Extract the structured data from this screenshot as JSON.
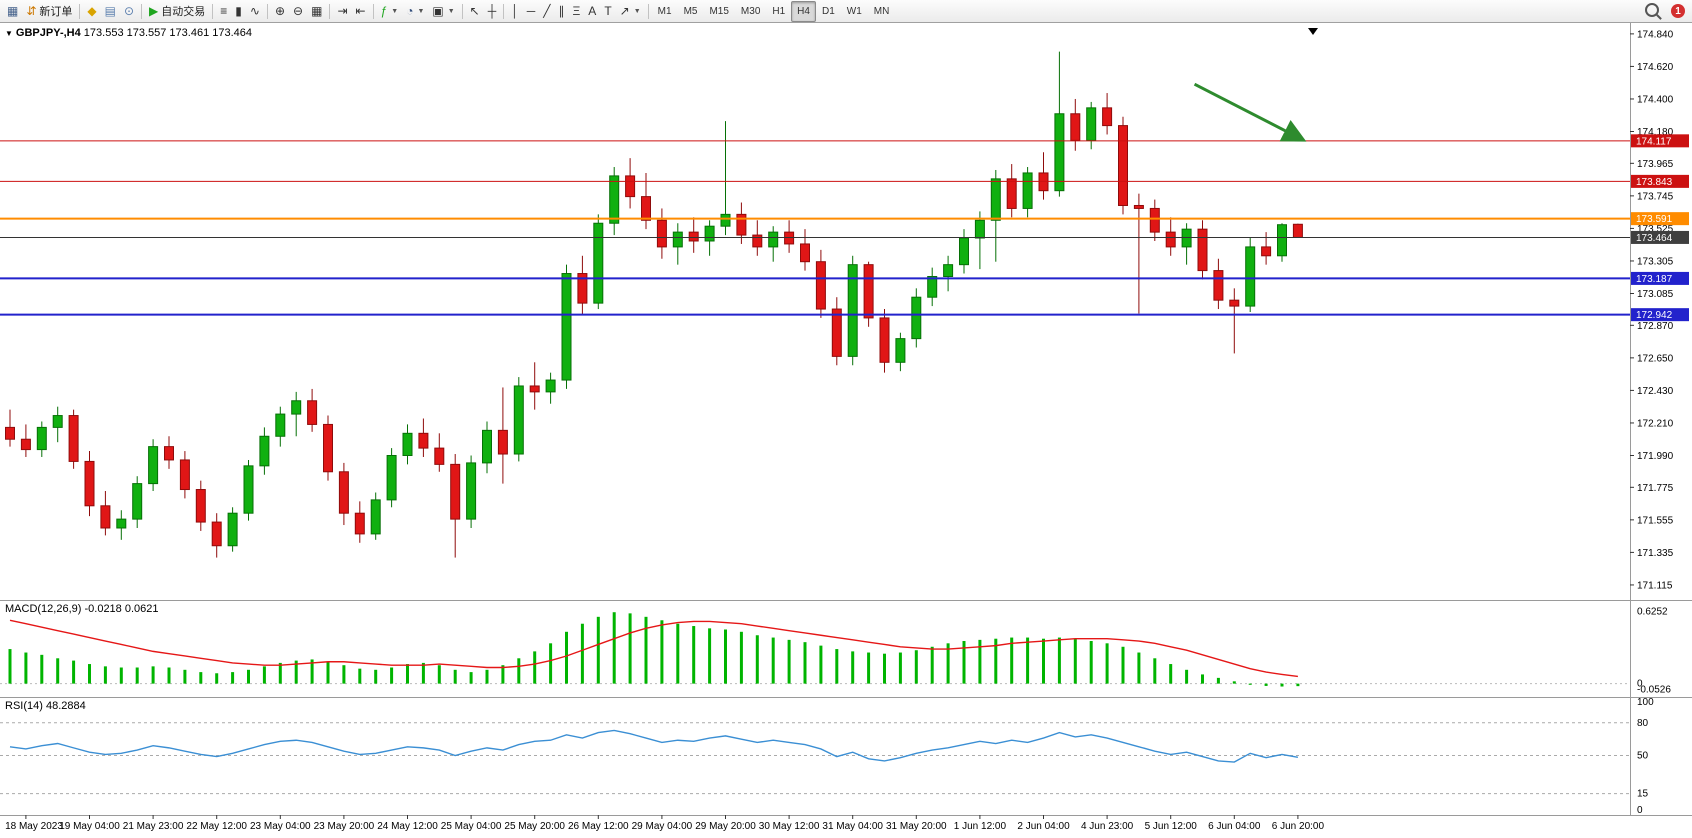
{
  "toolbar": {
    "buttons": [
      {
        "name": "new-chart-window-icon",
        "glyph": "▦",
        "color": "#44618b"
      },
      {
        "name": "new-order-button",
        "glyph": "⇵",
        "color": "#cc7700",
        "label": "新订单"
      },
      {
        "sep": true
      },
      {
        "name": "quick-trade-icon",
        "glyph": "◆",
        "color": "#d9a400"
      },
      {
        "name": "print-icon",
        "glyph": "▤",
        "color": "#5b7fae"
      },
      {
        "name": "history-center-icon",
        "glyph": "⊙",
        "color": "#5b7fae"
      },
      {
        "sep": true
      },
      {
        "name": "autotrading-button",
        "glyph": "▶",
        "color": "#1fa51f",
        "label": "自动交易"
      },
      {
        "sep": true
      },
      {
        "name": "bar-chart-icon",
        "glyph": "≡",
        "color": "#333333"
      },
      {
        "name": "candlestick-chart-icon",
        "glyph": "▮",
        "color": "#333333"
      },
      {
        "name": "line-chart-icon",
        "glyph": "∿",
        "color": "#333333"
      },
      {
        "sep": true
      },
      {
        "name": "zoom-in-icon",
        "glyph": "⊕",
        "color": "#333333"
      },
      {
        "name": "zoom-out-icon",
        "glyph": "⊖",
        "color": "#333333"
      },
      {
        "name": "tile-windows-icon",
        "glyph": "▦",
        "color": "#333333"
      },
      {
        "sep": true
      },
      {
        "name": "auto-scroll-icon",
        "glyph": "⇥",
        "color": "#333333"
      },
      {
        "name": "chart-shift-icon",
        "glyph": "⇤",
        "color": "#333333"
      },
      {
        "sep": true
      },
      {
        "name": "indicators-icon",
        "glyph": "ƒ",
        "color": "#1fa51f",
        "caret": true
      },
      {
        "name": "periods-icon",
        "glyph": "◔",
        "color": "#334f7d",
        "caret": true
      },
      {
        "name": "templates-icon",
        "glyph": "▣",
        "color": "#333333",
        "caret": true
      },
      {
        "sep": true
      },
      {
        "name": "cursor-icon",
        "glyph": "↖",
        "color": "#333333"
      },
      {
        "name": "crosshair-icon",
        "glyph": "┼",
        "color": "#333333"
      },
      {
        "sep": true
      },
      {
        "name": "vertical-line-icon",
        "glyph": "│",
        "color": "#333333"
      },
      {
        "name": "horizontal-line-icon",
        "glyph": "─",
        "color": "#333333"
      },
      {
        "name": "trendline-icon",
        "glyph": "╱",
        "color": "#333333"
      },
      {
        "name": "channel-icon",
        "glyph": "∥",
        "color": "#333333"
      },
      {
        "name": "fibonacci-icon",
        "glyph": "Ξ",
        "color": "#333333"
      },
      {
        "name": "text-icon",
        "glyph": "A",
        "color": "#333333"
      },
      {
        "name": "text-label-icon",
        "glyph": "T",
        "color": "#333333"
      },
      {
        "name": "arrows-icon",
        "glyph": "↗",
        "color": "#333333",
        "caret": true
      }
    ],
    "timeframes": [
      "M1",
      "M5",
      "M15",
      "M30",
      "H1",
      "H4",
      "D1",
      "W1",
      "MN"
    ],
    "active_timeframe": "H4",
    "notification_count": "1"
  },
  "chart_header": {
    "symbol_timeframe": "GBPJPY-,H4",
    "ohlc": "173.553 173.557 173.461 173.464"
  },
  "indicators": {
    "macd": {
      "label": "MACD(12,26,9)",
      "main_value": "-0.0218",
      "signal_value": "0.0621",
      "scale_labels": [
        {
          "label": "0.6252",
          "value": 0.6252
        },
        {
          "label": "0",
          "value": 0
        },
        {
          "label": "-0.0526",
          "value": -0.0526
        }
      ]
    },
    "rsi": {
      "label": "RSI(14)",
      "value": "48.2884",
      "levels": [
        100,
        80,
        50,
        15,
        0
      ]
    }
  },
  "chart_data": {
    "type": "candlestick",
    "symbol": "GBPJPY-",
    "timeframe": "H4",
    "price_range": {
      "min": 171.02,
      "max": 174.9
    },
    "price_axis_ticks": [
      174.84,
      174.62,
      174.4,
      174.18,
      173.965,
      173.745,
      173.525,
      173.305,
      173.085,
      172.87,
      172.65,
      172.43,
      172.21,
      171.99,
      171.775,
      171.555,
      171.335,
      171.115
    ],
    "time_labels": [
      "18 May 2023",
      "19 May 04:00",
      "21 May 23:00",
      "22 May 12:00",
      "23 May 04:00",
      "23 May 20:00",
      "24 May 12:00",
      "25 May 04:00",
      "25 May 20:00",
      "26 May 12:00",
      "29 May 04:00",
      "29 May 20:00",
      "30 May 12:00",
      "31 May 04:00",
      "31 May 20:00",
      "1 Jun 12:00",
      "2 Jun 04:00",
      "4 Jun 23:00",
      "5 Jun 12:00",
      "6 Jun 04:00",
      "6 Jun 20:00"
    ],
    "first_label_bar_index": 1,
    "label_every_bars": 4,
    "candles": [
      [
        172.18,
        172.3,
        172.05,
        172.1
      ],
      [
        172.1,
        172.2,
        171.98,
        172.03
      ],
      [
        172.03,
        172.22,
        171.98,
        172.18
      ],
      [
        172.18,
        172.32,
        172.08,
        172.26
      ],
      [
        172.26,
        172.3,
        171.9,
        171.95
      ],
      [
        171.95,
        172.02,
        171.58,
        171.65
      ],
      [
        171.65,
        171.75,
        171.45,
        171.5
      ],
      [
        171.5,
        171.62,
        171.42,
        171.56
      ],
      [
        171.56,
        171.85,
        171.5,
        171.8
      ],
      [
        171.8,
        172.1,
        171.75,
        172.05
      ],
      [
        172.05,
        172.12,
        171.9,
        171.96
      ],
      [
        171.96,
        172.02,
        171.7,
        171.76
      ],
      [
        171.76,
        171.82,
        171.48,
        171.54
      ],
      [
        171.54,
        171.6,
        171.3,
        171.38
      ],
      [
        171.38,
        171.64,
        171.34,
        171.6
      ],
      [
        171.6,
        171.96,
        171.55,
        171.92
      ],
      [
        171.92,
        172.18,
        171.86,
        172.12
      ],
      [
        172.12,
        172.32,
        172.05,
        172.27
      ],
      [
        172.27,
        172.42,
        172.12,
        172.36
      ],
      [
        172.36,
        172.44,
        172.15,
        172.2
      ],
      [
        172.2,
        172.26,
        171.82,
        171.88
      ],
      [
        171.88,
        171.94,
        171.52,
        171.6
      ],
      [
        171.6,
        171.68,
        171.4,
        171.46
      ],
      [
        171.46,
        171.74,
        171.42,
        171.69
      ],
      [
        171.69,
        172.04,
        171.64,
        171.99
      ],
      [
        171.99,
        172.2,
        171.93,
        172.14
      ],
      [
        172.14,
        172.24,
        171.98,
        172.04
      ],
      [
        172.04,
        172.14,
        171.88,
        171.93
      ],
      [
        171.93,
        172.0,
        171.3,
        171.56
      ],
      [
        171.56,
        171.99,
        171.5,
        171.94
      ],
      [
        171.94,
        172.22,
        171.87,
        172.16
      ],
      [
        172.16,
        172.45,
        171.8,
        172.0
      ],
      [
        172.0,
        172.52,
        171.95,
        172.46
      ],
      [
        172.46,
        172.62,
        172.3,
        172.42
      ],
      [
        172.42,
        172.55,
        172.34,
        172.5
      ],
      [
        172.5,
        173.28,
        172.44,
        173.22
      ],
      [
        173.22,
        173.34,
        172.94,
        173.02
      ],
      [
        173.02,
        173.62,
        172.98,
        173.56
      ],
      [
        173.56,
        173.94,
        173.48,
        173.88
      ],
      [
        173.88,
        174.0,
        173.66,
        173.74
      ],
      [
        173.74,
        173.9,
        173.52,
        173.58
      ],
      [
        173.58,
        173.66,
        173.32,
        173.4
      ],
      [
        173.4,
        173.56,
        173.28,
        173.5
      ],
      [
        173.5,
        173.6,
        173.36,
        173.44
      ],
      [
        173.44,
        173.58,
        173.34,
        173.54
      ],
      [
        173.54,
        174.25,
        173.48,
        173.62
      ],
      [
        173.62,
        173.7,
        173.42,
        173.48
      ],
      [
        173.48,
        173.58,
        173.34,
        173.4
      ],
      [
        173.4,
        173.54,
        173.3,
        173.5
      ],
      [
        173.5,
        173.58,
        173.36,
        173.42
      ],
      [
        173.42,
        173.52,
        173.24,
        173.3
      ],
      [
        173.3,
        173.38,
        172.92,
        172.98
      ],
      [
        172.98,
        173.06,
        172.6,
        172.66
      ],
      [
        172.66,
        173.34,
        172.6,
        173.28
      ],
      [
        173.28,
        173.3,
        172.86,
        172.92
      ],
      [
        172.92,
        172.98,
        172.55,
        172.62
      ],
      [
        172.62,
        172.82,
        172.56,
        172.78
      ],
      [
        172.78,
        173.12,
        172.72,
        173.06
      ],
      [
        173.06,
        173.26,
        173.0,
        173.2
      ],
      [
        173.2,
        173.34,
        173.1,
        173.28
      ],
      [
        173.28,
        173.52,
        173.22,
        173.46
      ],
      [
        173.46,
        173.64,
        173.25,
        173.58
      ],
      [
        173.58,
        173.92,
        173.3,
        173.86
      ],
      [
        173.86,
        173.96,
        173.6,
        173.66
      ],
      [
        173.66,
        173.94,
        173.6,
        173.9
      ],
      [
        173.9,
        174.04,
        173.72,
        173.78
      ],
      [
        173.78,
        174.72,
        173.74,
        174.3
      ],
      [
        174.3,
        174.4,
        174.05,
        174.12
      ],
      [
        174.12,
        174.38,
        174.06,
        174.34
      ],
      [
        174.34,
        174.44,
        174.16,
        174.22
      ],
      [
        174.22,
        174.28,
        173.62,
        173.68
      ],
      [
        173.68,
        173.76,
        172.95,
        173.66
      ],
      [
        173.66,
        173.72,
        173.44,
        173.5
      ],
      [
        173.5,
        173.6,
        173.34,
        173.4
      ],
      [
        173.4,
        173.56,
        173.28,
        173.52
      ],
      [
        173.52,
        173.58,
        173.18,
        173.24
      ],
      [
        173.24,
        173.32,
        172.98,
        173.04
      ],
      [
        173.04,
        173.12,
        172.68,
        173.0
      ],
      [
        173.0,
        173.46,
        172.96,
        173.4
      ],
      [
        173.4,
        173.5,
        173.28,
        173.34
      ],
      [
        173.34,
        173.56,
        173.3,
        173.55
      ],
      [
        173.553,
        173.557,
        173.461,
        173.464
      ]
    ],
    "horizontal_lines": [
      {
        "name": "resistance-line-1",
        "price": 174.117,
        "color": "#cc1111",
        "width": 1
      },
      {
        "name": "resistance-line-2",
        "price": 173.843,
        "color": "#cc1111",
        "width": 1
      },
      {
        "name": "pivot-line",
        "price": 173.591,
        "color": "#ff8c00",
        "width": 2
      },
      {
        "name": "bid-price-line",
        "price": 173.464,
        "color": "#333333",
        "width": 1,
        "badge": "#3f3f3f"
      },
      {
        "name": "support-line-1",
        "price": 173.187,
        "color": "#2222cc",
        "width": 2
      },
      {
        "name": "support-line-2",
        "price": 172.942,
        "color": "#2222cc",
        "width": 2
      }
    ],
    "annotations": {
      "arrow": {
        "from_bar": 74.5,
        "from_price": 174.5,
        "to_bar": 81.2,
        "to_price": 174.13,
        "color": "#2e8b2e"
      }
    },
    "colors": {
      "up": "#10b010",
      "up_stroke": "#067006",
      "down": "#e01616",
      "down_stroke": "#8f0b0b"
    },
    "macd": {
      "range": {
        "min": -0.09,
        "max": 0.7
      },
      "histogram_color": "#00b400",
      "signal_color": "#e51717",
      "histogram": [
        0.3,
        0.27,
        0.25,
        0.22,
        0.2,
        0.17,
        0.15,
        0.14,
        0.14,
        0.15,
        0.14,
        0.12,
        0.1,
        0.09,
        0.1,
        0.12,
        0.15,
        0.18,
        0.2,
        0.21,
        0.19,
        0.16,
        0.13,
        0.12,
        0.14,
        0.17,
        0.18,
        0.16,
        0.12,
        0.1,
        0.12,
        0.16,
        0.22,
        0.28,
        0.35,
        0.45,
        0.52,
        0.58,
        0.62,
        0.61,
        0.58,
        0.55,
        0.52,
        0.5,
        0.48,
        0.47,
        0.45,
        0.42,
        0.4,
        0.38,
        0.36,
        0.33,
        0.3,
        0.28,
        0.27,
        0.26,
        0.27,
        0.29,
        0.32,
        0.35,
        0.37,
        0.38,
        0.39,
        0.4,
        0.4,
        0.39,
        0.4,
        0.39,
        0.37,
        0.35,
        0.32,
        0.27,
        0.22,
        0.17,
        0.12,
        0.08,
        0.05,
        0.02,
        -0.01,
        -0.02,
        -0.025,
        -0.0218
      ],
      "signal": [
        0.55,
        0.52,
        0.49,
        0.46,
        0.43,
        0.4,
        0.37,
        0.34,
        0.31,
        0.28,
        0.26,
        0.24,
        0.22,
        0.2,
        0.18,
        0.17,
        0.16,
        0.16,
        0.17,
        0.18,
        0.19,
        0.19,
        0.18,
        0.17,
        0.16,
        0.16,
        0.16,
        0.17,
        0.16,
        0.15,
        0.14,
        0.14,
        0.15,
        0.17,
        0.2,
        0.24,
        0.29,
        0.34,
        0.39,
        0.44,
        0.48,
        0.51,
        0.53,
        0.54,
        0.54,
        0.53,
        0.52,
        0.5,
        0.48,
        0.46,
        0.44,
        0.42,
        0.4,
        0.38,
        0.36,
        0.34,
        0.32,
        0.31,
        0.3,
        0.3,
        0.31,
        0.32,
        0.33,
        0.35,
        0.36,
        0.37,
        0.38,
        0.39,
        0.39,
        0.39,
        0.38,
        0.37,
        0.35,
        0.32,
        0.29,
        0.25,
        0.21,
        0.17,
        0.13,
        0.1,
        0.08,
        0.0621
      ]
    },
    "rsi": {
      "range": {
        "min": 0,
        "max": 100
      },
      "levels": [
        80,
        50,
        15
      ],
      "color": "#3b8fd4",
      "line": [
        58,
        56,
        59,
        61,
        57,
        53,
        51,
        52,
        55,
        59,
        57,
        54,
        51,
        49,
        52,
        56,
        60,
        63,
        64,
        62,
        58,
        54,
        51,
        52,
        55,
        58,
        57,
        55,
        50,
        54,
        57,
        55,
        60,
        63,
        64,
        69,
        66,
        71,
        73,
        70,
        66,
        62,
        64,
        63,
        66,
        68,
        65,
        62,
        64,
        62,
        60,
        56,
        49,
        53,
        47,
        45,
        48,
        52,
        55,
        57,
        60,
        63,
        61,
        64,
        62,
        66,
        71,
        67,
        69,
        66,
        62,
        58,
        54,
        51,
        53,
        49,
        45,
        44,
        52,
        48,
        51,
        48.29
      ]
    }
  }
}
